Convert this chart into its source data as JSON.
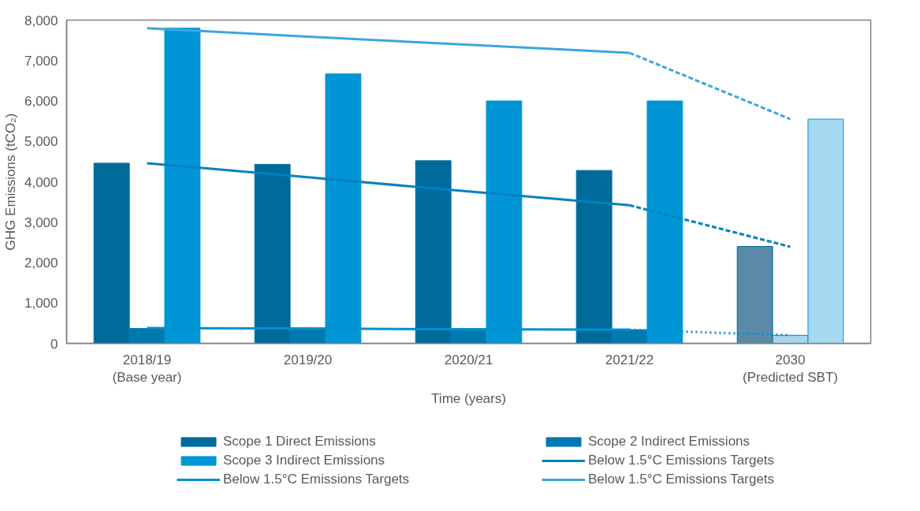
{
  "chart_data": {
    "type": "bar",
    "xlabel": "Time (years)",
    "ylabel": "GHG Emissions (tCO₂)",
    "categories": [
      "2018/19\n(Base year)",
      "2019/20",
      "2020/21",
      "2021/22",
      "2030\n(Predicted SBT)"
    ],
    "ylim": [
      0,
      8000
    ],
    "yticks": [
      {
        "value": 0,
        "label": "0"
      },
      {
        "value": 1000,
        "label": "1,000"
      },
      {
        "value": 2000,
        "label": "2,000"
      },
      {
        "value": 3000,
        "label": "3,000"
      },
      {
        "value": 4000,
        "label": "4,000"
      },
      {
        "value": 5000,
        "label": "5,000"
      },
      {
        "value": 6000,
        "label": "6,000"
      },
      {
        "value": 7000,
        "label": "7,000"
      },
      {
        "value": 8000,
        "label": "8,000"
      }
    ],
    "grid": false,
    "legend": "bottom",
    "series": [
      {
        "name": "Scope 1 Direct Emissions",
        "color": "#006a9b",
        "colors": [
          "#006a9b",
          "#006a9b",
          "#006a9b",
          "#006a9b",
          "#5a8aa6"
        ],
        "values": [
          4460,
          4430,
          4520,
          4280,
          2400
        ]
      },
      {
        "name": "Scope 2 Indirect Emissions",
        "color": "#0078b0",
        "colors": [
          "#0078b0",
          "#0078b0",
          "#0078b0",
          "#0078b0",
          "#a9d4ec"
        ],
        "values": [
          370,
          380,
          370,
          340,
          200
        ]
      },
      {
        "name": "Scope 3 Indirect Emissions",
        "color": "#0096d6",
        "colors": [
          "#0096d6",
          "#0096d6",
          "#0096d6",
          "#0096d6",
          "#a6d8f0"
        ],
        "values": [
          7800,
          6670,
          6000,
          6000,
          5550
        ]
      },
      {
        "name": "Below 1.5°C Emissions Targets",
        "type": "line",
        "color": "#0082c0",
        "line_style": "solid",
        "values": [
          4460,
          4110,
          3760,
          3420,
          null
        ]
      },
      {
        "name": "Below 1.5°C Emissions Targets",
        "type": "line",
        "color": "#0090d0",
        "line_style": "solid",
        "values": [
          380,
          370,
          350,
          340,
          null
        ]
      },
      {
        "name": "Below 1.5°C Emissions Targets",
        "type": "line",
        "color": "#3da5e0",
        "line_style": "solid",
        "values": [
          7800,
          7590,
          7390,
          7190,
          null
        ]
      },
      {
        "type": "line",
        "color": "#0082c0",
        "line_style": "dashed",
        "values": [
          null,
          null,
          null,
          3420,
          2390
        ]
      },
      {
        "type": "line",
        "color": "#0090d0",
        "line_style": "dotted",
        "values": [
          null,
          null,
          null,
          340,
          200
        ]
      },
      {
        "type": "line",
        "color": "#3da5e0",
        "line_style": "dashed",
        "values": [
          null,
          null,
          null,
          7190,
          5550
        ]
      }
    ]
  }
}
